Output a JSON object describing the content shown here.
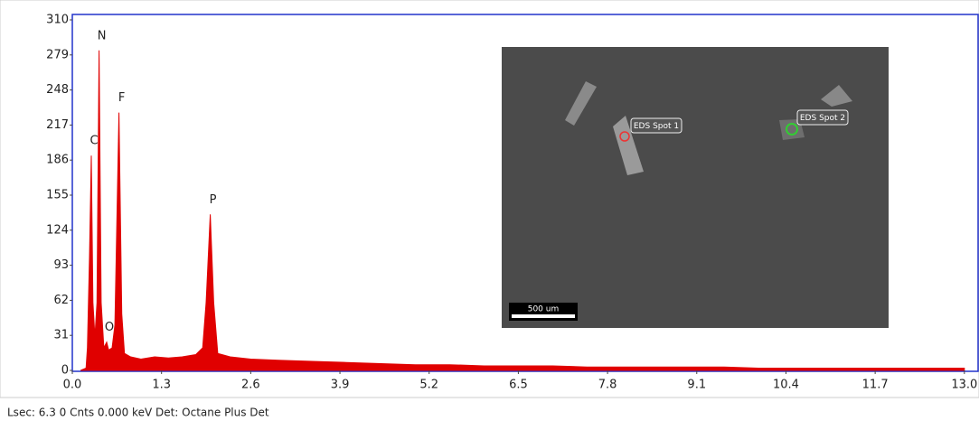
{
  "chart_data": {
    "type": "area",
    "x": [
      0.12,
      0.2,
      0.22,
      0.25,
      0.277,
      0.3,
      0.33,
      0.36,
      0.39,
      0.42,
      0.46,
      0.5,
      0.53,
      0.58,
      0.62,
      0.68,
      0.72,
      0.76,
      0.85,
      1.0,
      1.2,
      1.4,
      1.6,
      1.8,
      1.9,
      1.95,
      2.01,
      2.06,
      2.12,
      2.3,
      2.6,
      3.0,
      3.5,
      4.0,
      4.5,
      5.0,
      5.5,
      6.0,
      6.5,
      7.0,
      7.5,
      8.0,
      8.5,
      9.0,
      9.5,
      10.0,
      10.5,
      11.0,
      11.5,
      12.0,
      12.5,
      13.0
    ],
    "values": [
      0,
      2,
      20,
      100,
      190,
      60,
      30,
      60,
      283,
      60,
      20,
      25,
      18,
      20,
      40,
      228,
      50,
      15,
      12,
      10,
      12,
      11,
      12,
      14,
      20,
      60,
      138,
      60,
      15,
      12,
      10,
      9,
      8,
      7,
      6,
      5,
      5,
      4,
      4,
      4,
      3,
      3,
      3,
      3,
      3,
      2,
      2,
      2,
      2,
      2,
      2,
      2
    ],
    "color": "#e00000",
    "xlim": [
      0,
      13.2
    ],
    "ylim": [
      0,
      310
    ],
    "xticks": [
      {
        "value": 0,
        "label": "0.0"
      },
      1.3,
      2.6,
      3.9,
      5.2,
      6.5,
      7.8,
      9.1,
      10.4,
      11.7,
      {
        "value": 13,
        "label": "13.0"
      }
    ],
    "yticks": [
      0,
      31,
      62,
      93,
      124,
      155,
      186,
      217,
      248,
      279,
      310
    ],
    "annotations": [
      {
        "text": "C",
        "x": 0.277,
        "y": 190
      },
      {
        "text": "N",
        "x": 0.39,
        "y": 283
      },
      {
        "text": "O",
        "x": 0.5,
        "y": 25
      },
      {
        "text": "F",
        "x": 0.68,
        "y": 228
      },
      {
        "text": "P",
        "x": 2.01,
        "y": 138
      }
    ]
  },
  "inset": {
    "spot_labels": [
      "EDS Spot 1",
      "EDS Spot 2"
    ],
    "scale_bar": "500 um"
  },
  "status_bar": "Lsec: 6.3 0 Cnts  0.000 keV Det: Octane Plus Det"
}
